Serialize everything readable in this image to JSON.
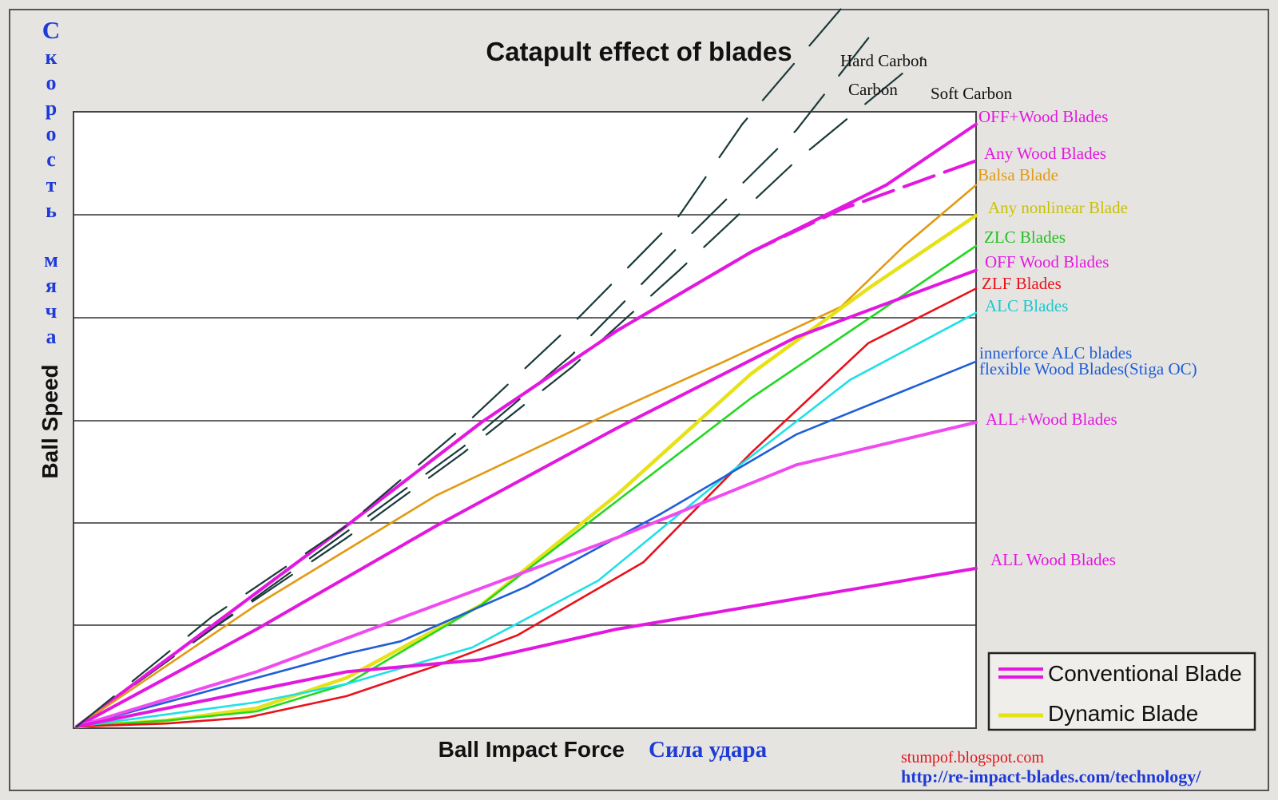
{
  "chart_data": {
    "type": "line",
    "title": "Catapult effect of blades",
    "xlabel": "Ball Impact Force",
    "xlabel_ru": "Сила удара",
    "ylabel": "Ball Speed",
    "ylabel_ru": "Скорость мяча",
    "x_ticks_shown": false,
    "y_ticks_shown": false,
    "grid": "horizontal",
    "xlim": [
      0,
      100
    ],
    "ylim": [
      0,
      100
    ],
    "series": [
      {
        "name": "Hard Carbon",
        "group": "carbon",
        "color": "#1a3a3a",
        "style": "dashed",
        "points": [
          [
            0,
            0
          ],
          [
            15,
            18
          ],
          [
            30,
            33
          ],
          [
            42,
            48
          ],
          [
            55,
            66
          ],
          [
            67,
            84
          ],
          [
            74,
            99
          ],
          [
            85,
            118
          ]
        ]
      },
      {
        "name": "Carbon",
        "group": "carbon",
        "color": "#1a3a3a",
        "style": "dashed",
        "points": [
          [
            0,
            0
          ],
          [
            15,
            16
          ],
          [
            30,
            32
          ],
          [
            43,
            46
          ],
          [
            55,
            61
          ],
          [
            67,
            79
          ],
          [
            80,
            98
          ],
          [
            89,
            115
          ]
        ]
      },
      {
        "name": "Soft Carbon",
        "group": "carbon",
        "color": "#1a3a3a",
        "style": "dashed",
        "points": [
          [
            0,
            0
          ],
          [
            15,
            16
          ],
          [
            30,
            31
          ],
          [
            43,
            45
          ],
          [
            55,
            59
          ],
          [
            67,
            75
          ],
          [
            80,
            93
          ],
          [
            94,
            110
          ]
        ]
      },
      {
        "name": "OFF+Wood Blades",
        "group": "conventional",
        "color": "#e318e0",
        "style": "solid",
        "points": [
          [
            0,
            0
          ],
          [
            30,
            33
          ],
          [
            45,
            50
          ],
          [
            60,
            65
          ],
          [
            75,
            78
          ],
          [
            90,
            89
          ],
          [
            100,
            99
          ]
        ]
      },
      {
        "name": "Any Wood Blades",
        "group": "conventional",
        "color": "#e318e0",
        "style": "dashed",
        "points": [
          [
            0,
            0
          ],
          [
            30,
            33
          ],
          [
            45,
            50
          ],
          [
            60,
            65
          ],
          [
            75,
            78
          ],
          [
            85,
            85
          ],
          [
            100,
            93
          ]
        ]
      },
      {
        "name": "Balsa Blade",
        "group": "dynamic",
        "color": "#e29a12",
        "style": "solid",
        "points": [
          [
            0,
            0
          ],
          [
            20,
            20
          ],
          [
            40,
            38
          ],
          [
            60,
            52
          ],
          [
            72,
            60
          ],
          [
            85,
            69
          ],
          [
            92,
            79
          ],
          [
            100,
            89
          ]
        ]
      },
      {
        "name": "Any nonlinear Blade",
        "group": "dynamic",
        "color": "#e6e218",
        "style": "solid",
        "points": [
          [
            0,
            0
          ],
          [
            10,
            1
          ],
          [
            20,
            3
          ],
          [
            30,
            8
          ],
          [
            45,
            20
          ],
          [
            60,
            38
          ],
          [
            75,
            58
          ],
          [
            88,
            72
          ],
          [
            100,
            84
          ]
        ]
      },
      {
        "name": "ZLC Blades",
        "group": "dynamic",
        "color": "#22d822",
        "style": "solid",
        "points": [
          [
            0,
            0
          ],
          [
            10,
            1
          ],
          [
            20,
            2.5
          ],
          [
            30,
            7
          ],
          [
            45,
            20
          ],
          [
            60,
            37
          ],
          [
            75,
            54
          ],
          [
            88,
            67
          ],
          [
            100,
            79
          ]
        ]
      },
      {
        "name": "OFF Wood Blades",
        "group": "conventional",
        "color": "#e318e0",
        "style": "solid",
        "points": [
          [
            0,
            0
          ],
          [
            20,
            16
          ],
          [
            40,
            33
          ],
          [
            60,
            49
          ],
          [
            80,
            64
          ],
          [
            100,
            75
          ]
        ]
      },
      {
        "name": "ZLF Blades",
        "group": "dynamic",
        "color": "#e8121a",
        "style": "solid",
        "points": [
          [
            0,
            0
          ],
          [
            10,
            0.5
          ],
          [
            19,
            1.5
          ],
          [
            30,
            5
          ],
          [
            40,
            10
          ],
          [
            49,
            15
          ],
          [
            63,
            27
          ],
          [
            75,
            45
          ],
          [
            88,
            63
          ],
          [
            100,
            72
          ]
        ]
      },
      {
        "name": "ALC Blades",
        "group": "dynamic",
        "color": "#1ee0e6",
        "style": "solid",
        "points": [
          [
            0,
            0
          ],
          [
            10,
            2
          ],
          [
            20,
            4
          ],
          [
            30,
            7
          ],
          [
            44,
            13
          ],
          [
            58,
            24
          ],
          [
            72,
            41
          ],
          [
            86,
            57
          ],
          [
            100,
            68
          ]
        ]
      },
      {
        "name": "innerforce ALC blades flexible Wood Blades(Stiga OC)",
        "group": "dynamic",
        "color": "#1f5ed8",
        "style": "solid",
        "points": [
          [
            0,
            0
          ],
          [
            15,
            6
          ],
          [
            30,
            12
          ],
          [
            36,
            14
          ],
          [
            50,
            23
          ],
          [
            65,
            35
          ],
          [
            80,
            48
          ],
          [
            100,
            60
          ]
        ]
      },
      {
        "name": "ALL+Wood Blades",
        "group": "conventional",
        "color": "#f04bf0",
        "style": "solid",
        "points": [
          [
            0,
            0
          ],
          [
            20,
            9
          ],
          [
            40,
            20
          ],
          [
            60,
            31
          ],
          [
            80,
            43
          ],
          [
            100,
            50
          ]
        ]
      },
      {
        "name": "ALL Wood Blades",
        "group": "conventional",
        "color": "#e318e0",
        "style": "solid",
        "points": [
          [
            0,
            0
          ],
          [
            30,
            9
          ],
          [
            45,
            11
          ],
          [
            60,
            16
          ],
          [
            80,
            21
          ],
          [
            100,
            26
          ]
        ]
      }
    ],
    "legend": {
      "placement": "bottom-right",
      "entries": [
        {
          "label": "Conventional Blade",
          "color": "#e318e0"
        },
        {
          "label": "Dynamic Blade",
          "color": "#e6e218"
        }
      ]
    },
    "annotations": {
      "hard_carbon": "Hard Carbon",
      "carbon": "Carbon",
      "soft_carbon": "Soft Carbon"
    },
    "credits": {
      "blog": "stumpof.blogspot.com",
      "url": "http://re-impact-blades.com/technology/"
    }
  }
}
